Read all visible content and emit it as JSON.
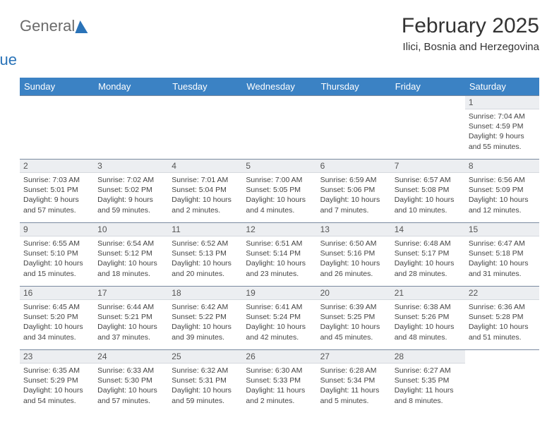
{
  "logo": {
    "word1": "General",
    "word2": "Blue"
  },
  "title": "February 2025",
  "location": "Ilici, Bosnia and Herzegovina",
  "colors": {
    "header_bg": "#3b82c4",
    "header_text": "#ffffff",
    "daynum_bg": "#eceef1",
    "border": "#7a8aa0",
    "logo_blue": "#2a73b8",
    "logo_gray": "#6b6b6b"
  },
  "weekdays": [
    "Sunday",
    "Monday",
    "Tuesday",
    "Wednesday",
    "Thursday",
    "Friday",
    "Saturday"
  ],
  "weeks": [
    [
      null,
      null,
      null,
      null,
      null,
      null,
      {
        "n": "1",
        "sr": "Sunrise: 7:04 AM",
        "ss": "Sunset: 4:59 PM",
        "dl": "Daylight: 9 hours and 55 minutes."
      }
    ],
    [
      {
        "n": "2",
        "sr": "Sunrise: 7:03 AM",
        "ss": "Sunset: 5:01 PM",
        "dl": "Daylight: 9 hours and 57 minutes."
      },
      {
        "n": "3",
        "sr": "Sunrise: 7:02 AM",
        "ss": "Sunset: 5:02 PM",
        "dl": "Daylight: 9 hours and 59 minutes."
      },
      {
        "n": "4",
        "sr": "Sunrise: 7:01 AM",
        "ss": "Sunset: 5:04 PM",
        "dl": "Daylight: 10 hours and 2 minutes."
      },
      {
        "n": "5",
        "sr": "Sunrise: 7:00 AM",
        "ss": "Sunset: 5:05 PM",
        "dl": "Daylight: 10 hours and 4 minutes."
      },
      {
        "n": "6",
        "sr": "Sunrise: 6:59 AM",
        "ss": "Sunset: 5:06 PM",
        "dl": "Daylight: 10 hours and 7 minutes."
      },
      {
        "n": "7",
        "sr": "Sunrise: 6:57 AM",
        "ss": "Sunset: 5:08 PM",
        "dl": "Daylight: 10 hours and 10 minutes."
      },
      {
        "n": "8",
        "sr": "Sunrise: 6:56 AM",
        "ss": "Sunset: 5:09 PM",
        "dl": "Daylight: 10 hours and 12 minutes."
      }
    ],
    [
      {
        "n": "9",
        "sr": "Sunrise: 6:55 AM",
        "ss": "Sunset: 5:10 PM",
        "dl": "Daylight: 10 hours and 15 minutes."
      },
      {
        "n": "10",
        "sr": "Sunrise: 6:54 AM",
        "ss": "Sunset: 5:12 PM",
        "dl": "Daylight: 10 hours and 18 minutes."
      },
      {
        "n": "11",
        "sr": "Sunrise: 6:52 AM",
        "ss": "Sunset: 5:13 PM",
        "dl": "Daylight: 10 hours and 20 minutes."
      },
      {
        "n": "12",
        "sr": "Sunrise: 6:51 AM",
        "ss": "Sunset: 5:14 PM",
        "dl": "Daylight: 10 hours and 23 minutes."
      },
      {
        "n": "13",
        "sr": "Sunrise: 6:50 AM",
        "ss": "Sunset: 5:16 PM",
        "dl": "Daylight: 10 hours and 26 minutes."
      },
      {
        "n": "14",
        "sr": "Sunrise: 6:48 AM",
        "ss": "Sunset: 5:17 PM",
        "dl": "Daylight: 10 hours and 28 minutes."
      },
      {
        "n": "15",
        "sr": "Sunrise: 6:47 AM",
        "ss": "Sunset: 5:18 PM",
        "dl": "Daylight: 10 hours and 31 minutes."
      }
    ],
    [
      {
        "n": "16",
        "sr": "Sunrise: 6:45 AM",
        "ss": "Sunset: 5:20 PM",
        "dl": "Daylight: 10 hours and 34 minutes."
      },
      {
        "n": "17",
        "sr": "Sunrise: 6:44 AM",
        "ss": "Sunset: 5:21 PM",
        "dl": "Daylight: 10 hours and 37 minutes."
      },
      {
        "n": "18",
        "sr": "Sunrise: 6:42 AM",
        "ss": "Sunset: 5:22 PM",
        "dl": "Daylight: 10 hours and 39 minutes."
      },
      {
        "n": "19",
        "sr": "Sunrise: 6:41 AM",
        "ss": "Sunset: 5:24 PM",
        "dl": "Daylight: 10 hours and 42 minutes."
      },
      {
        "n": "20",
        "sr": "Sunrise: 6:39 AM",
        "ss": "Sunset: 5:25 PM",
        "dl": "Daylight: 10 hours and 45 minutes."
      },
      {
        "n": "21",
        "sr": "Sunrise: 6:38 AM",
        "ss": "Sunset: 5:26 PM",
        "dl": "Daylight: 10 hours and 48 minutes."
      },
      {
        "n": "22",
        "sr": "Sunrise: 6:36 AM",
        "ss": "Sunset: 5:28 PM",
        "dl": "Daylight: 10 hours and 51 minutes."
      }
    ],
    [
      {
        "n": "23",
        "sr": "Sunrise: 6:35 AM",
        "ss": "Sunset: 5:29 PM",
        "dl": "Daylight: 10 hours and 54 minutes."
      },
      {
        "n": "24",
        "sr": "Sunrise: 6:33 AM",
        "ss": "Sunset: 5:30 PM",
        "dl": "Daylight: 10 hours and 57 minutes."
      },
      {
        "n": "25",
        "sr": "Sunrise: 6:32 AM",
        "ss": "Sunset: 5:31 PM",
        "dl": "Daylight: 10 hours and 59 minutes."
      },
      {
        "n": "26",
        "sr": "Sunrise: 6:30 AM",
        "ss": "Sunset: 5:33 PM",
        "dl": "Daylight: 11 hours and 2 minutes."
      },
      {
        "n": "27",
        "sr": "Sunrise: 6:28 AM",
        "ss": "Sunset: 5:34 PM",
        "dl": "Daylight: 11 hours and 5 minutes."
      },
      {
        "n": "28",
        "sr": "Sunrise: 6:27 AM",
        "ss": "Sunset: 5:35 PM",
        "dl": "Daylight: 11 hours and 8 minutes."
      },
      null
    ]
  ]
}
